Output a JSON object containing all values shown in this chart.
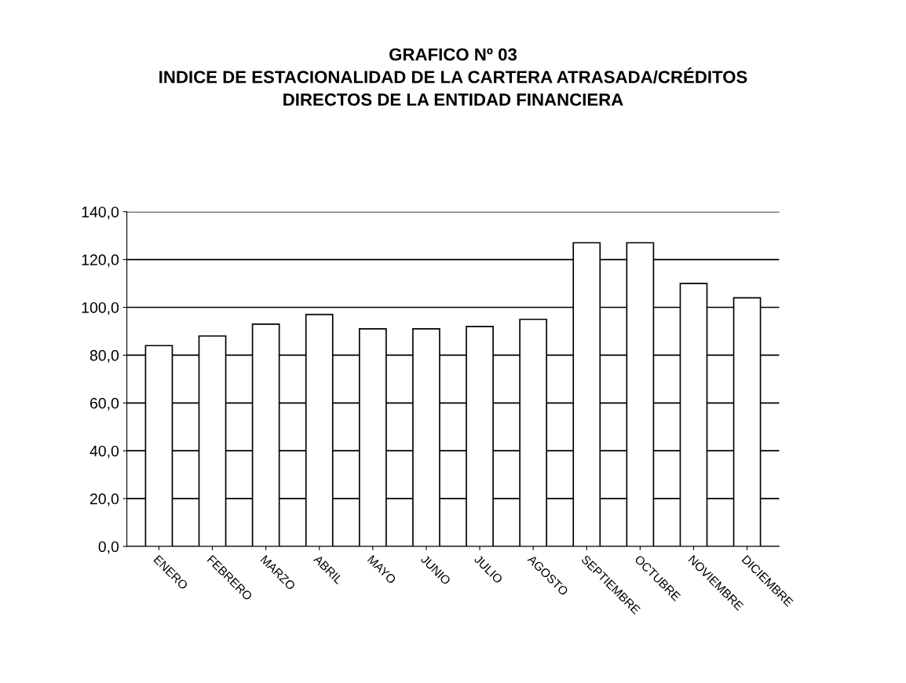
{
  "chart_data": {
    "type": "bar",
    "title": "GRAFICO Nº 03\nINDICE DE ESTACIONALIDAD DE LA CARTERA ATRASADA/CRÉDITOS\nDIRECTOS DE LA ENTIDAD FINANCIERA",
    "categories": [
      "ENERO",
      "FEBRERO",
      "MARZO",
      "ABRIL",
      "MAYO",
      "JUNIO",
      "JULIO",
      "AGOSTO",
      "SEPTIEMBRE",
      "OCTUBRE",
      "NOVIEMBRE",
      "DICIEMBRE"
    ],
    "values": [
      84,
      88,
      93,
      97,
      91,
      91,
      92,
      95,
      127,
      127,
      110,
      104
    ],
    "color": "#ffffff",
    "ylim": [
      0,
      140
    ],
    "yticks": [
      {
        "value": 0,
        "label": "0,0"
      },
      {
        "value": 20,
        "label": "20,0"
      },
      {
        "value": 40,
        "label": "40,0"
      },
      {
        "value": 60,
        "label": "60,0"
      },
      {
        "value": 80,
        "label": "80,0"
      },
      {
        "value": 100,
        "label": "100,0"
      },
      {
        "value": 120,
        "label": "120,0"
      },
      {
        "value": 140,
        "label": "140,0"
      }
    ],
    "grid": "y"
  }
}
